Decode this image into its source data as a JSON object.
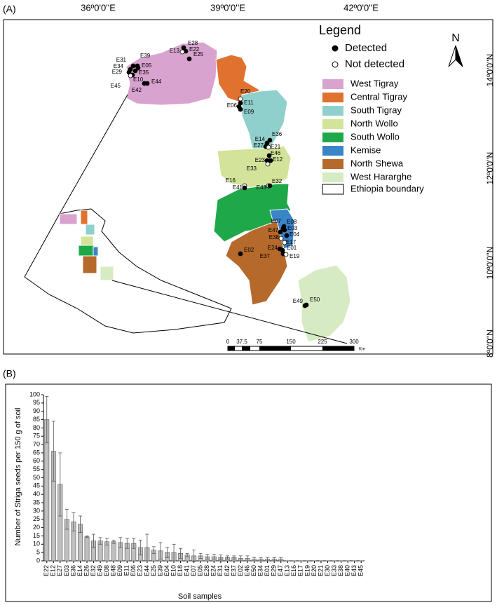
{
  "map": {
    "panel_label": "(A)",
    "lon_labels": [
      "36º0'0''E",
      "39º0'0''E",
      "42º0'0''E"
    ],
    "lat_labels": [
      "14º0'0''N",
      "12º0'0''N",
      "10º0'0''N",
      "8º0'0''N"
    ],
    "north": "N",
    "scale_labels": [
      "0",
      "37.5",
      "75",
      "150",
      "225",
      "300"
    ],
    "scale_unit": "Km",
    "legend": {
      "title": "Legend",
      "detected": "Detected",
      "not_detected": "Not detected",
      "detected_color": "#000000",
      "not_detected_color": "#ffffff",
      "regions": [
        {
          "name": "West Tigray",
          "color": "#d9a3cf"
        },
        {
          "name": "Central Tigray",
          "color": "#e0712f"
        },
        {
          "name": "South Tigray",
          "color": "#8fd0cc"
        },
        {
          "name": "North Wollo",
          "color": "#d3e39a"
        },
        {
          "name": "South Wollo",
          "color": "#1fa84a"
        },
        {
          "name": "Kemise",
          "color": "#3a84c8"
        },
        {
          "name": "North Shewa",
          "color": "#b5692a"
        },
        {
          "name": "West Hararghe",
          "color": "#d6ebc4"
        }
      ],
      "boundary": "Ethiopia boundary"
    },
    "points": [
      {
        "label": "E28",
        "detected": true
      },
      {
        "label": "E22",
        "detected": true
      },
      {
        "label": "E13",
        "detected": false
      },
      {
        "label": "E25",
        "detected": true
      },
      {
        "label": "E31",
        "detected": true
      },
      {
        "label": "E39",
        "detected": true
      },
      {
        "label": "E34",
        "detected": true
      },
      {
        "label": "E05",
        "detected": true
      },
      {
        "label": "E29",
        "detected": true
      },
      {
        "label": "E35",
        "detected": true
      },
      {
        "label": "E10",
        "detected": true
      },
      {
        "label": "E45",
        "detected": false
      },
      {
        "label": "E42",
        "detected": true
      },
      {
        "label": "E44",
        "detected": true
      },
      {
        "label": "E20",
        "detected": false
      },
      {
        "label": "E11",
        "detected": true
      },
      {
        "label": "E06",
        "detected": true
      },
      {
        "label": "E09",
        "detected": true
      },
      {
        "label": "E36",
        "detected": true
      },
      {
        "label": "E14",
        "detected": true
      },
      {
        "label": "E27",
        "detected": true
      },
      {
        "label": "E21",
        "detected": false
      },
      {
        "label": "E46",
        "detected": true
      },
      {
        "label": "E23",
        "detected": true
      },
      {
        "label": "E12",
        "detected": true
      },
      {
        "label": "E33",
        "detected": false
      },
      {
        "label": "E16",
        "detected": false
      },
      {
        "label": "E41",
        "detected": true
      },
      {
        "label": "E43",
        "detected": false
      },
      {
        "label": "E32",
        "detected": true
      },
      {
        "label": "E08",
        "detected": true
      },
      {
        "label": "E07",
        "detected": true
      },
      {
        "label": "E03",
        "detected": true
      },
      {
        "label": "E04",
        "detected": true
      },
      {
        "label": "E47",
        "detected": true
      },
      {
        "label": "E38",
        "detected": false
      },
      {
        "label": "E17",
        "detected": false
      },
      {
        "label": "E24",
        "detected": true
      },
      {
        "label": "E01",
        "detected": true
      },
      {
        "label": "E37",
        "detected": true
      },
      {
        "label": "E19",
        "detected": false
      },
      {
        "label": "E02",
        "detected": true
      },
      {
        "label": "E49",
        "detected": true
      },
      {
        "label": "E50",
        "detected": true
      }
    ]
  },
  "chart_data": {
    "type": "bar",
    "panel_label": "(B)",
    "ylabel": "Number of Striga seeds per 150 g of soil",
    "xlabel": "Soil samples",
    "color": "#bfbfbf",
    "categories": [
      "E22",
      "E12",
      "E27",
      "E03",
      "E36",
      "E14",
      "E26",
      "E32",
      "E49",
      "E08",
      "E48",
      "E09",
      "E11",
      "E06",
      "E23",
      "E44",
      "E25",
      "E39",
      "E04",
      "E10",
      "E18",
      "E41",
      "E07",
      "E05",
      "E28",
      "E24",
      "E31",
      "E42",
      "E37",
      "E02",
      "E46",
      "E50",
      "E34",
      "E01",
      "E29",
      "E47",
      "E13",
      "E16",
      "E17",
      "E19",
      "E20",
      "E21",
      "E30",
      "E33",
      "E38",
      "E40",
      "E43",
      "E45"
    ],
    "values": [
      85,
      66,
      46,
      25,
      23.5,
      22,
      14.5,
      12,
      12,
      11.5,
      11.5,
      11,
      10.5,
      10.5,
      8,
      8,
      6.5,
      6,
      5,
      5,
      4.5,
      3.5,
      3,
      3,
      2.5,
      2.5,
      2,
      2,
      2,
      1.5,
      1.5,
      1,
      1,
      1,
      1,
      1,
      0,
      0,
      0,
      0,
      0,
      0,
      0,
      0,
      0,
      0,
      0,
      0
    ],
    "errors": [
      14,
      18,
      19,
      6,
      5.5,
      5,
      0.5,
      4,
      2,
      2,
      1,
      3,
      3,
      3,
      4.5,
      8,
      2,
      5,
      3,
      5,
      3,
      1,
      3.5,
      1.5,
      1.5,
      1.5,
      1.5,
      1,
      1,
      1.5,
      1.5,
      1,
      1,
      1,
      1,
      1,
      0,
      0,
      0,
      0,
      0,
      0,
      0,
      0,
      0,
      0,
      0,
      0
    ],
    "ylim": [
      0,
      100
    ],
    "yticks": [
      0,
      5,
      10,
      15,
      20,
      25,
      30,
      35,
      40,
      45,
      50,
      55,
      60,
      65,
      70,
      75,
      80,
      85,
      90,
      95,
      100
    ]
  }
}
